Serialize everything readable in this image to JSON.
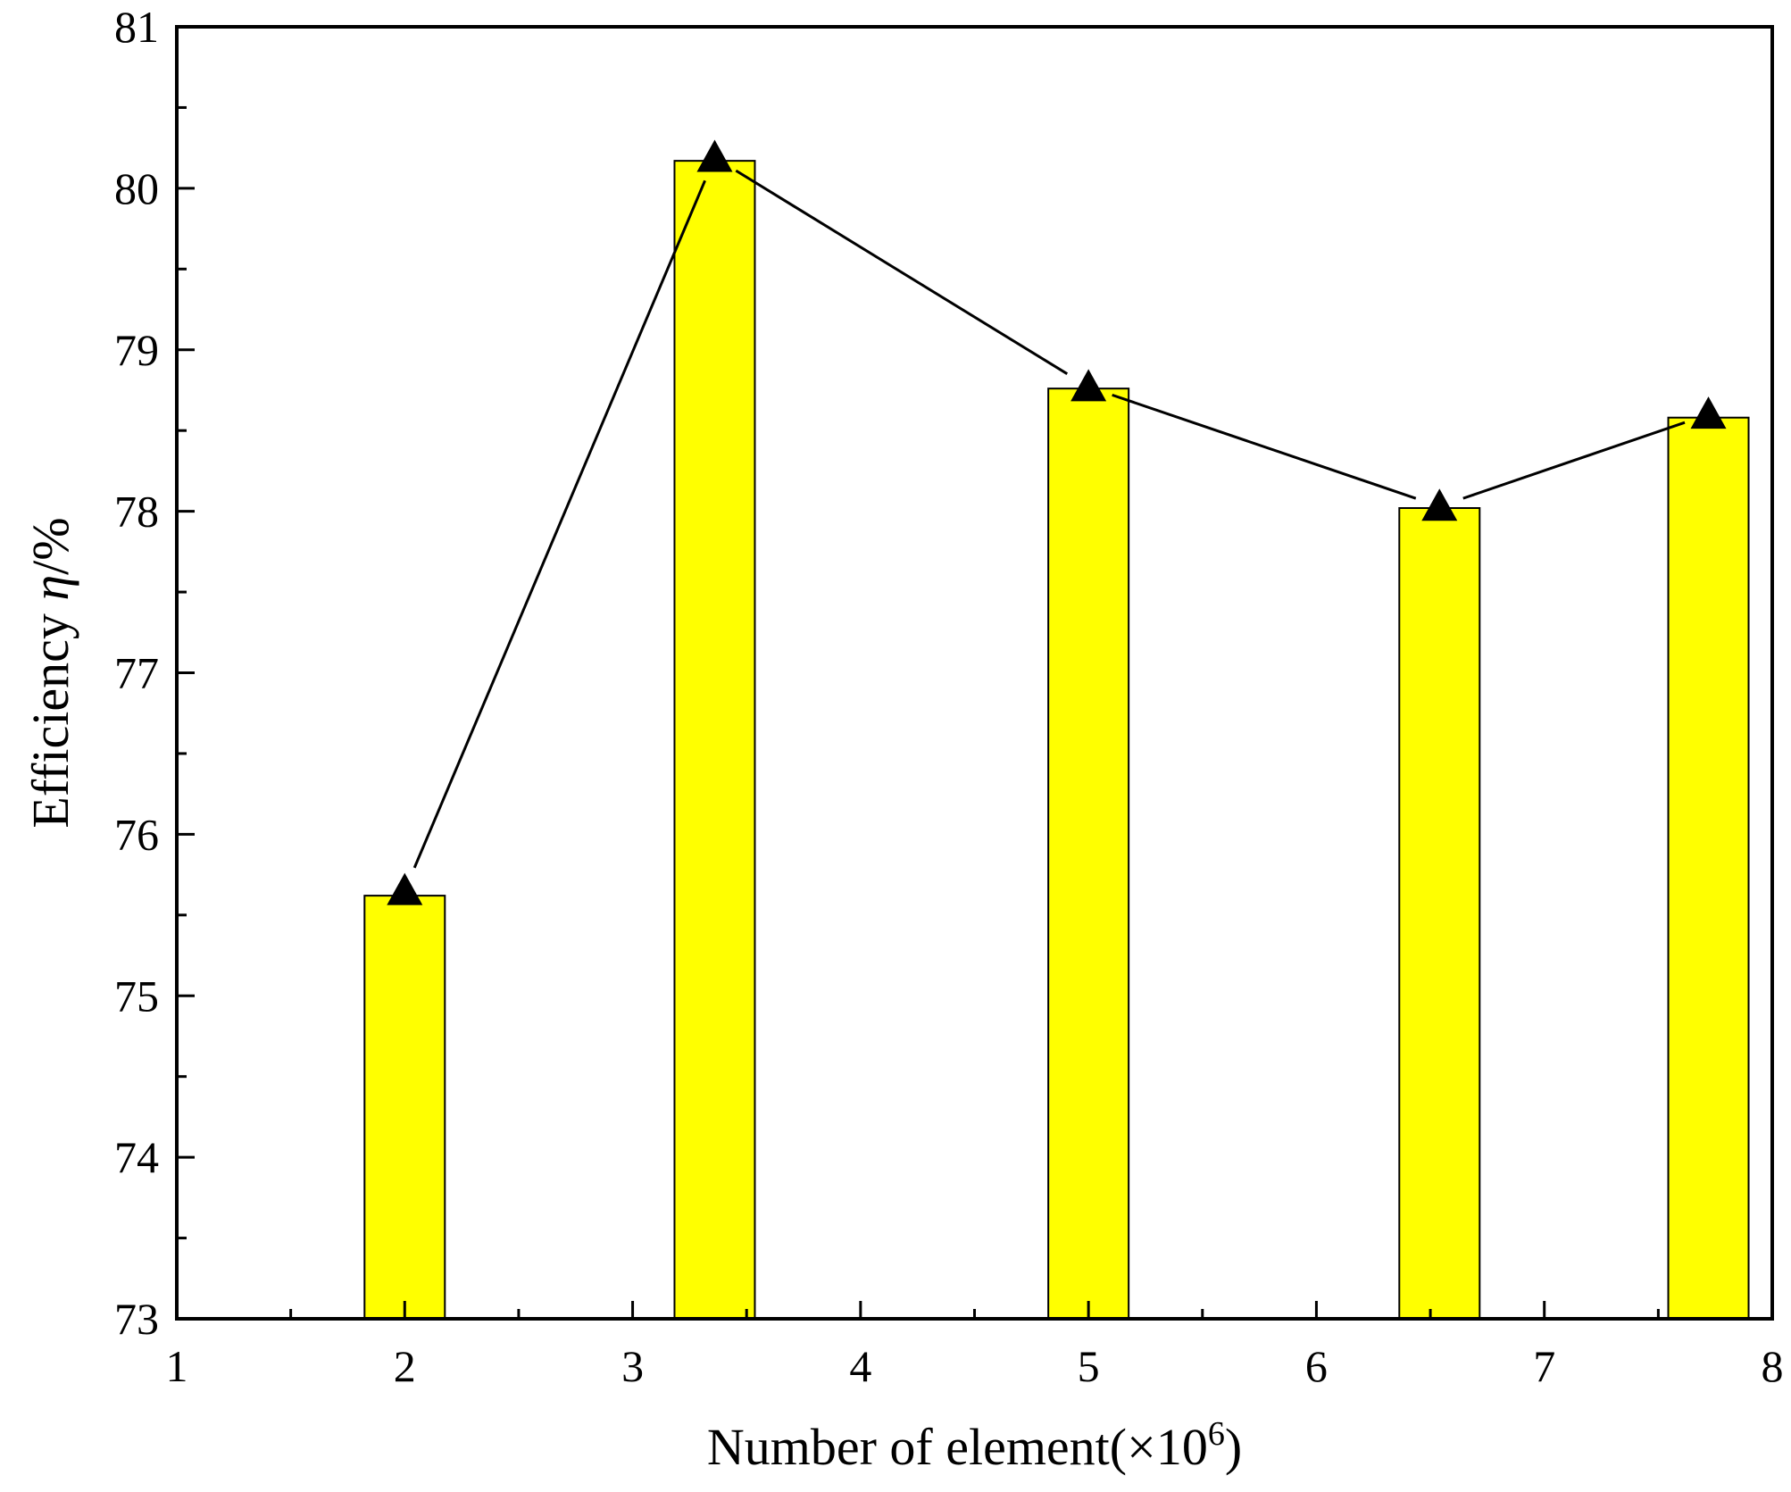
{
  "chart_data": {
    "type": "bar",
    "title": "",
    "xlabel": {
      "main": "Number of element(×10",
      "sup": "6",
      "close": ")"
    },
    "ylabel": {
      "main": "Efficiency ",
      "var": "η",
      "unit": "/%"
    },
    "xlim": [
      1,
      8
    ],
    "ylim": [
      73,
      81
    ],
    "x_ticks": [
      1,
      2,
      3,
      4,
      5,
      6,
      7,
      8
    ],
    "y_ticks": [
      73,
      74,
      75,
      76,
      77,
      78,
      79,
      80,
      81
    ],
    "grid": false,
    "legend": "none",
    "bar_color": "#ffff00",
    "line_color": "#000000",
    "series": [
      {
        "kind": "bar",
        "x": [
          2.0,
          3.36,
          5.0,
          6.54,
          7.72
        ],
        "values": [
          75.62,
          80.17,
          78.76,
          78.02,
          78.58
        ]
      },
      {
        "kind": "line-triangle-markers",
        "x": [
          2.0,
          3.36,
          5.0,
          6.54,
          7.72
        ],
        "values": [
          75.65,
          80.19,
          78.77,
          78.03,
          78.6
        ]
      }
    ]
  }
}
